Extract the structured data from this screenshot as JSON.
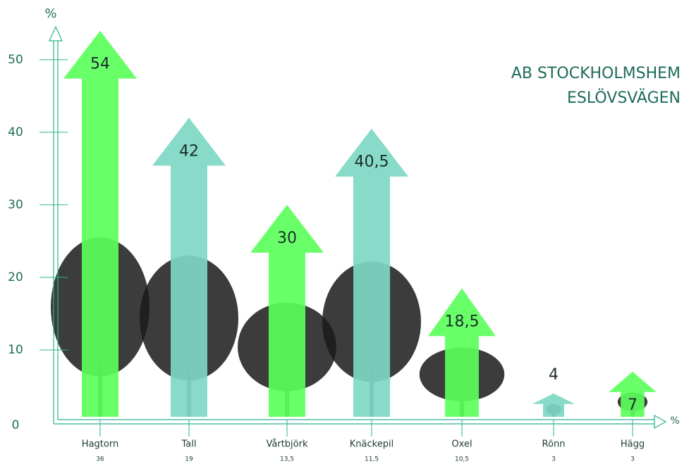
{
  "chart_data": {
    "type": "arrow-bar",
    "title": "AB STOCKHOLMSHEM",
    "subtitle": "ESLÖVSVÄGEN",
    "y_label": "%",
    "x_label": "%",
    "categories": [
      "Hagtorn",
      "Tall",
      "Vårtbjörk",
      "Knäckepil",
      "Oxel",
      "Rönn",
      "Hägg"
    ],
    "values": [
      54,
      42,
      30,
      40.5,
      18.5,
      4,
      7
    ],
    "value_labels": [
      "54",
      "42",
      "30",
      "40,5",
      "18,5",
      "4",
      "7"
    ],
    "secondary_values": [
      36,
      19,
      13.5,
      11.5,
      10.5,
      3,
      3
    ],
    "secondary_labels": [
      "36",
      "19",
      "13,5",
      "11,5",
      "10,5",
      "3",
      "3"
    ],
    "colors": [
      "#5cff5c",
      "#7dd8c3",
      "#5cff5c",
      "#7dd8c3",
      "#5cff5c",
      "#7dd8c3",
      "#5cff5c"
    ],
    "ylim": [
      0,
      56
    ],
    "yticks": [
      0,
      10,
      20,
      30,
      40,
      50
    ]
  }
}
